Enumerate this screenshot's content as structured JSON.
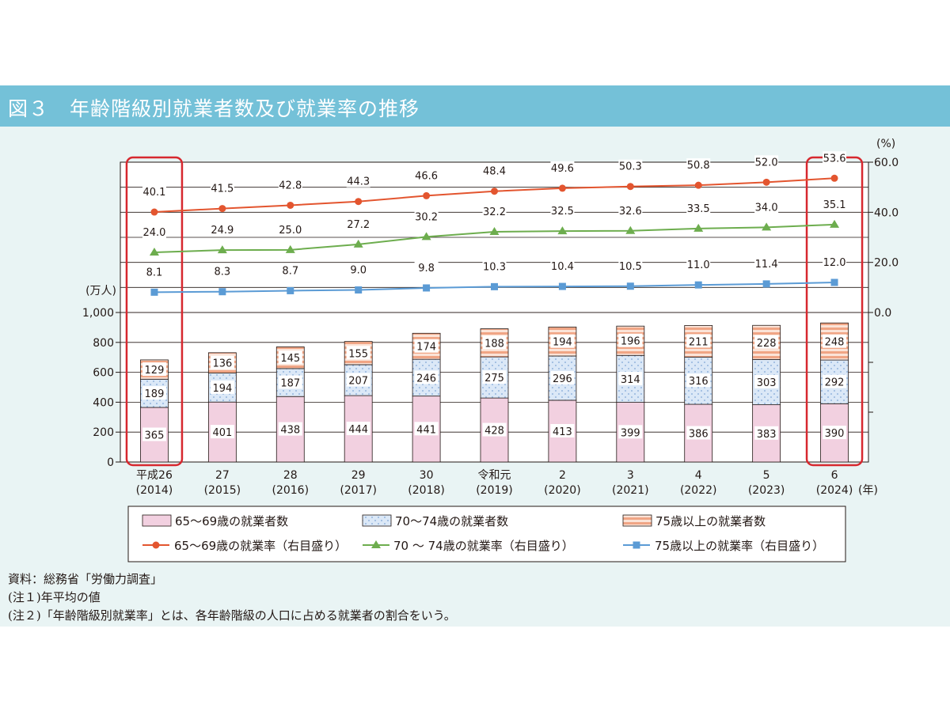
{
  "figure_title": "図３　年齢階級別就業者数及び就業率の推移",
  "notes": [
    "資料：総務省「労働力調査」",
    "(注１)年平均の値",
    "(注２)「年齢階級別就業率」とは、各年齢階級の人口に占める就業者の割合をいう。"
  ],
  "colors": {
    "title_bg": "#74c1d8",
    "panel_bg": "#e9f4f4",
    "bar_65_69": "#f2d0e0",
    "bar_70_74": "#dbe8f7",
    "bar_75_plus": "#f0a585",
    "line_65_69": "#e3552f",
    "line_70_74": "#6dad4e",
    "line_75_plus": "#5b9bd5",
    "highlight_box": "#d7282f"
  },
  "chart_data": {
    "type": "bar",
    "stacked": true,
    "categories": [
      "平成26",
      "27",
      "28",
      "29",
      "30",
      "令和元",
      "2",
      "3",
      "4",
      "5",
      "6"
    ],
    "categories_sub": [
      "(2014)",
      "(2015)",
      "(2016)",
      "(2017)",
      "(2018)",
      "(2019)",
      "(2020)",
      "(2021)",
      "(2022)",
      "(2023)",
      "(2024)"
    ],
    "x_unit": "(年)",
    "left_axis": {
      "unit": "(万人)",
      "ticks": [
        "0",
        "200",
        "400",
        "600",
        "800",
        "1,000"
      ],
      "ylim": [
        0,
        1000
      ]
    },
    "right_axis": {
      "unit": "(%)",
      "ticks": [
        "0.0",
        "20.0",
        "40.0",
        "60.0"
      ],
      "ylim": [
        0,
        60
      ]
    },
    "series": [
      {
        "name": "65～69歳の就業者数",
        "type": "bar",
        "values": [
          365,
          401,
          438,
          444,
          441,
          428,
          413,
          399,
          386,
          383,
          390
        ]
      },
      {
        "name": "70～74歳の就業者数",
        "type": "bar",
        "values": [
          189,
          194,
          187,
          207,
          246,
          275,
          296,
          314,
          316,
          303,
          292
        ]
      },
      {
        "name": "75歳以上の就業者数",
        "type": "bar",
        "values": [
          129,
          136,
          145,
          155,
          174,
          188,
          194,
          196,
          211,
          228,
          248
        ]
      },
      {
        "name": "65～69歳の就業率（右目盛り）",
        "type": "line",
        "marker": "circle",
        "values": [
          40.1,
          41.5,
          42.8,
          44.3,
          46.6,
          48.4,
          49.6,
          50.3,
          50.8,
          52.0,
          53.6
        ]
      },
      {
        "name": "70 ～ 74歳の就業率（右目盛り）",
        "type": "line",
        "marker": "triangle",
        "values": [
          24.0,
          24.9,
          25.0,
          27.2,
          30.2,
          32.2,
          32.5,
          32.6,
          33.5,
          34.0,
          35.1
        ]
      },
      {
        "name": "75歳以上の就業率（右目盛り）",
        "type": "line",
        "marker": "square",
        "values": [
          8.1,
          8.3,
          8.7,
          9.0,
          9.8,
          10.3,
          10.4,
          10.5,
          11.0,
          11.4,
          12.0
        ]
      }
    ],
    "highlighted_categories": [
      "平成26",
      "6"
    ],
    "legend_position": "bottom"
  }
}
